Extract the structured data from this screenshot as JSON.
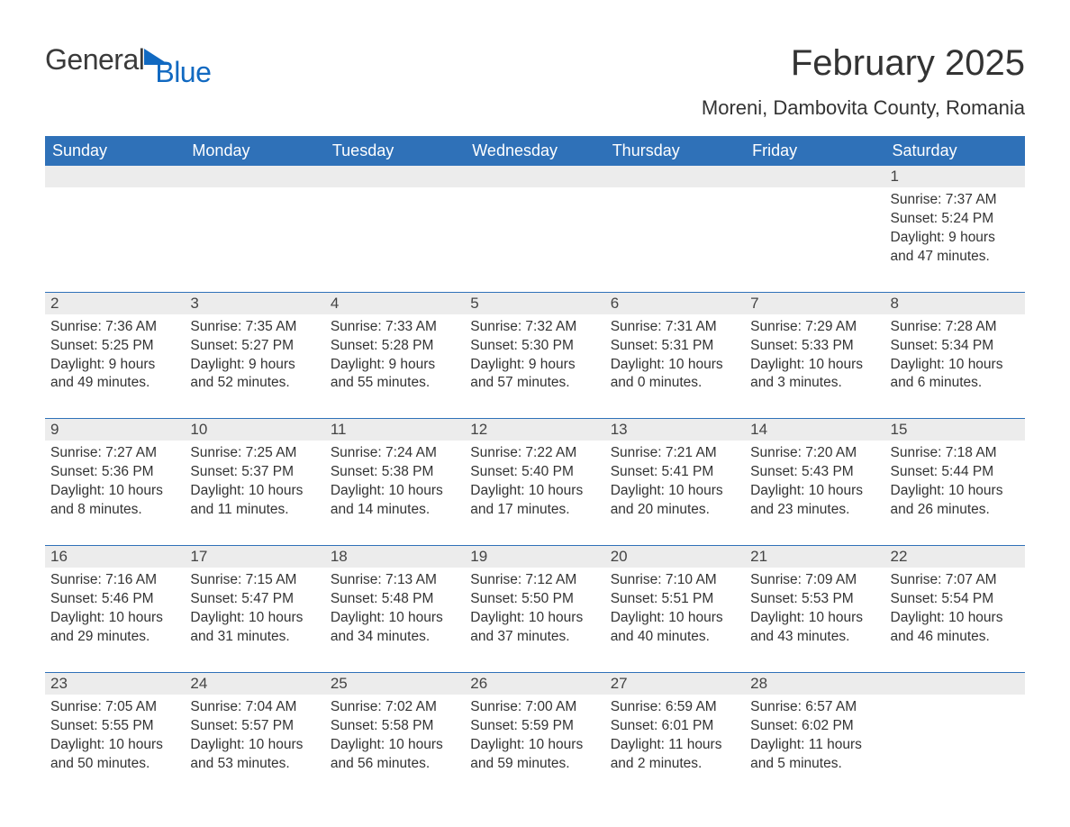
{
  "logo": {
    "word1": "General",
    "word2": "Blue"
  },
  "title": "February 2025",
  "location": "Moreni, Dambovita County, Romania",
  "colors": {
    "header_blue": "#2f71b8",
    "accent_blue": "#1169c1",
    "row_gray": "#ececec",
    "text": "#333333",
    "background": "#ffffff"
  },
  "typography": {
    "title_fontsize_pt": 30,
    "location_fontsize_pt": 16,
    "header_fontsize_pt": 14,
    "body_fontsize_pt": 12,
    "font_family": "Arial"
  },
  "columns": [
    "Sunday",
    "Monday",
    "Tuesday",
    "Wednesday",
    "Thursday",
    "Friday",
    "Saturday"
  ],
  "weeks": [
    [
      null,
      null,
      null,
      null,
      null,
      null,
      {
        "n": "1",
        "sr": "Sunrise: 7:37 AM",
        "ss": "Sunset: 5:24 PM",
        "d1": "Daylight: 9 hours",
        "d2": "and 47 minutes."
      }
    ],
    [
      {
        "n": "2",
        "sr": "Sunrise: 7:36 AM",
        "ss": "Sunset: 5:25 PM",
        "d1": "Daylight: 9 hours",
        "d2": "and 49 minutes."
      },
      {
        "n": "3",
        "sr": "Sunrise: 7:35 AM",
        "ss": "Sunset: 5:27 PM",
        "d1": "Daylight: 9 hours",
        "d2": "and 52 minutes."
      },
      {
        "n": "4",
        "sr": "Sunrise: 7:33 AM",
        "ss": "Sunset: 5:28 PM",
        "d1": "Daylight: 9 hours",
        "d2": "and 55 minutes."
      },
      {
        "n": "5",
        "sr": "Sunrise: 7:32 AM",
        "ss": "Sunset: 5:30 PM",
        "d1": "Daylight: 9 hours",
        "d2": "and 57 minutes."
      },
      {
        "n": "6",
        "sr": "Sunrise: 7:31 AM",
        "ss": "Sunset: 5:31 PM",
        "d1": "Daylight: 10 hours",
        "d2": "and 0 minutes."
      },
      {
        "n": "7",
        "sr": "Sunrise: 7:29 AM",
        "ss": "Sunset: 5:33 PM",
        "d1": "Daylight: 10 hours",
        "d2": "and 3 minutes."
      },
      {
        "n": "8",
        "sr": "Sunrise: 7:28 AM",
        "ss": "Sunset: 5:34 PM",
        "d1": "Daylight: 10 hours",
        "d2": "and 6 minutes."
      }
    ],
    [
      {
        "n": "9",
        "sr": "Sunrise: 7:27 AM",
        "ss": "Sunset: 5:36 PM",
        "d1": "Daylight: 10 hours",
        "d2": "and 8 minutes."
      },
      {
        "n": "10",
        "sr": "Sunrise: 7:25 AM",
        "ss": "Sunset: 5:37 PM",
        "d1": "Daylight: 10 hours",
        "d2": "and 11 minutes."
      },
      {
        "n": "11",
        "sr": "Sunrise: 7:24 AM",
        "ss": "Sunset: 5:38 PM",
        "d1": "Daylight: 10 hours",
        "d2": "and 14 minutes."
      },
      {
        "n": "12",
        "sr": "Sunrise: 7:22 AM",
        "ss": "Sunset: 5:40 PM",
        "d1": "Daylight: 10 hours",
        "d2": "and 17 minutes."
      },
      {
        "n": "13",
        "sr": "Sunrise: 7:21 AM",
        "ss": "Sunset: 5:41 PM",
        "d1": "Daylight: 10 hours",
        "d2": "and 20 minutes."
      },
      {
        "n": "14",
        "sr": "Sunrise: 7:20 AM",
        "ss": "Sunset: 5:43 PM",
        "d1": "Daylight: 10 hours",
        "d2": "and 23 minutes."
      },
      {
        "n": "15",
        "sr": "Sunrise: 7:18 AM",
        "ss": "Sunset: 5:44 PM",
        "d1": "Daylight: 10 hours",
        "d2": "and 26 minutes."
      }
    ],
    [
      {
        "n": "16",
        "sr": "Sunrise: 7:16 AM",
        "ss": "Sunset: 5:46 PM",
        "d1": "Daylight: 10 hours",
        "d2": "and 29 minutes."
      },
      {
        "n": "17",
        "sr": "Sunrise: 7:15 AM",
        "ss": "Sunset: 5:47 PM",
        "d1": "Daylight: 10 hours",
        "d2": "and 31 minutes."
      },
      {
        "n": "18",
        "sr": "Sunrise: 7:13 AM",
        "ss": "Sunset: 5:48 PM",
        "d1": "Daylight: 10 hours",
        "d2": "and 34 minutes."
      },
      {
        "n": "19",
        "sr": "Sunrise: 7:12 AM",
        "ss": "Sunset: 5:50 PM",
        "d1": "Daylight: 10 hours",
        "d2": "and 37 minutes."
      },
      {
        "n": "20",
        "sr": "Sunrise: 7:10 AM",
        "ss": "Sunset: 5:51 PM",
        "d1": "Daylight: 10 hours",
        "d2": "and 40 minutes."
      },
      {
        "n": "21",
        "sr": "Sunrise: 7:09 AM",
        "ss": "Sunset: 5:53 PM",
        "d1": "Daylight: 10 hours",
        "d2": "and 43 minutes."
      },
      {
        "n": "22",
        "sr": "Sunrise: 7:07 AM",
        "ss": "Sunset: 5:54 PM",
        "d1": "Daylight: 10 hours",
        "d2": "and 46 minutes."
      }
    ],
    [
      {
        "n": "23",
        "sr": "Sunrise: 7:05 AM",
        "ss": "Sunset: 5:55 PM",
        "d1": "Daylight: 10 hours",
        "d2": "and 50 minutes."
      },
      {
        "n": "24",
        "sr": "Sunrise: 7:04 AM",
        "ss": "Sunset: 5:57 PM",
        "d1": "Daylight: 10 hours",
        "d2": "and 53 minutes."
      },
      {
        "n": "25",
        "sr": "Sunrise: 7:02 AM",
        "ss": "Sunset: 5:58 PM",
        "d1": "Daylight: 10 hours",
        "d2": "and 56 minutes."
      },
      {
        "n": "26",
        "sr": "Sunrise: 7:00 AM",
        "ss": "Sunset: 5:59 PM",
        "d1": "Daylight: 10 hours",
        "d2": "and 59 minutes."
      },
      {
        "n": "27",
        "sr": "Sunrise: 6:59 AM",
        "ss": "Sunset: 6:01 PM",
        "d1": "Daylight: 11 hours",
        "d2": "and 2 minutes."
      },
      {
        "n": "28",
        "sr": "Sunrise: 6:57 AM",
        "ss": "Sunset: 6:02 PM",
        "d1": "Daylight: 11 hours",
        "d2": "and 5 minutes."
      },
      null
    ]
  ]
}
